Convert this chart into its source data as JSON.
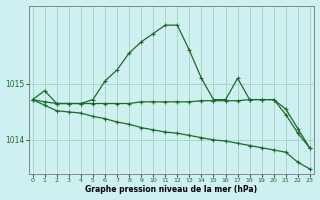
{
  "title": "Graphe pression niveau de la mer (hPa)",
  "background_color": "#cff0f0",
  "grid_color": "#99ccbb",
  "line_color": "#1a6b2a",
  "hours": [
    0,
    1,
    2,
    3,
    4,
    5,
    6,
    7,
    8,
    9,
    10,
    11,
    12,
    13,
    14,
    15,
    16,
    17,
    18,
    19,
    20,
    21,
    22,
    23
  ],
  "line_main": [
    1014.72,
    1014.88,
    1014.65,
    1014.65,
    1014.65,
    1014.72,
    1015.05,
    1015.25,
    1015.55,
    1015.75,
    1015.9,
    1016.05,
    1016.05,
    1015.6,
    1015.1,
    1014.72,
    1014.72,
    1015.1,
    1014.72,
    1014.72,
    1014.72,
    1014.45,
    1014.12,
    1013.85
  ],
  "line_flat": [
    1014.72,
    1014.68,
    1014.65,
    1014.65,
    1014.65,
    1014.65,
    1014.65,
    1014.65,
    1014.65,
    1014.68,
    1014.68,
    1014.68,
    1014.68,
    1014.68,
    1014.7,
    1014.7,
    1014.7,
    1014.7,
    1014.72,
    1014.72,
    1014.72,
    1014.55,
    1014.2,
    1013.85
  ],
  "line_diag": [
    1014.72,
    1014.62,
    1014.52,
    1014.5,
    1014.48,
    1014.42,
    1014.38,
    1014.32,
    1014.28,
    1014.22,
    1014.18,
    1014.14,
    1014.12,
    1014.08,
    1014.04,
    1014.0,
    1013.98,
    1013.94,
    1013.9,
    1013.86,
    1013.82,
    1013.78,
    1013.6,
    1013.48
  ],
  "flat_marker_hours": [
    1,
    5,
    6,
    7,
    8,
    9,
    10,
    11,
    12,
    13,
    14,
    15,
    16,
    17,
    18,
    19
  ],
  "ylim": [
    1013.4,
    1016.4
  ],
  "yticks": [
    1014,
    1015
  ],
  "xlim": [
    -0.3,
    23.3
  ],
  "xticks": [
    0,
    1,
    2,
    3,
    4,
    5,
    6,
    7,
    8,
    9,
    10,
    11,
    12,
    13,
    14,
    15,
    16,
    17,
    18,
    19,
    20,
    21,
    22,
    23
  ]
}
